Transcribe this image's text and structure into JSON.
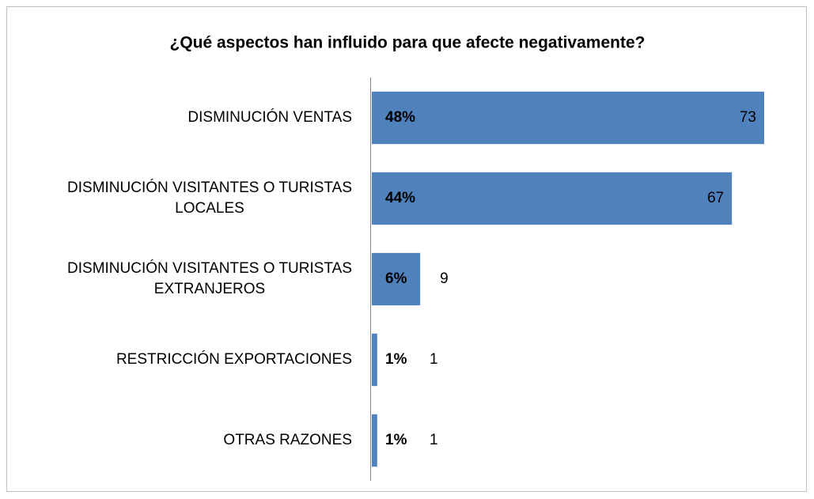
{
  "chart_data": {
    "type": "bar",
    "orientation": "horizontal",
    "title": "¿Qué aspectos han influido para que afecte negativamente?",
    "categories": [
      "DISMINUCIÓN VENTAS",
      "DISMINUCIÓN VISITANTES O TURISTAS LOCALES",
      "DISMINUCIÓN VISITANTES O TURISTAS EXTRANJEROS",
      "RESTRICCIÓN EXPORTACIONES",
      "OTRAS RAZONES"
    ],
    "values": [
      73,
      67,
      9,
      1,
      1
    ],
    "share_labels": [
      "48%",
      "44%",
      "6%",
      "1%",
      "1%"
    ],
    "color": "#4f81bd"
  }
}
